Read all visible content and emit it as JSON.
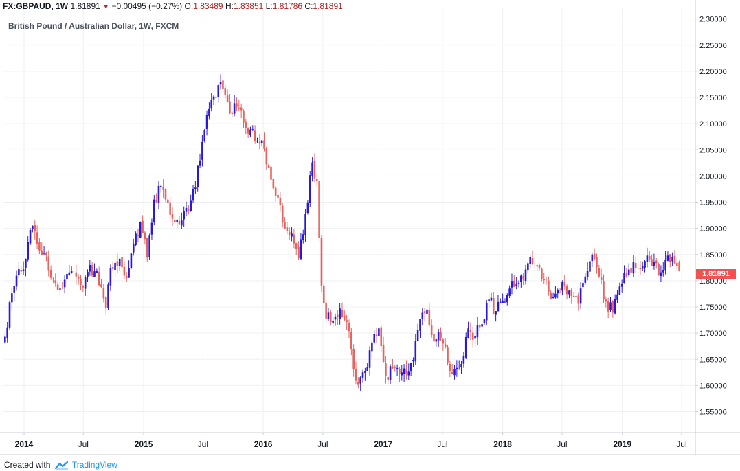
{
  "header": {
    "symbol": "FX:GBPAUD, 1W",
    "last": "1.81891",
    "arrow": "▼",
    "change": "−0.00495 (−0.27%)",
    "o_label": "O:",
    "o_value": "1.83489",
    "h_label": "H:",
    "h_value": "1.83851",
    "l_label": "L:",
    "l_value": "1.81786",
    "c_label": "C:",
    "c_value": "1.81891"
  },
  "subtitle": "British Pound / Australian Dollar, 1W, FXCM",
  "footer": {
    "created_with": "Created with",
    "brand": "TradingView"
  },
  "colors": {
    "up": "#2a18d6",
    "down": "#e8635f",
    "grid": "#eef0f3",
    "axis": "#c8ccd4",
    "price_line": "#e8635f",
    "price_tag": "#ef5350"
  },
  "chart_data": {
    "type": "candlestick",
    "title": "British Pound / Australian Dollar, 1W, FXCM",
    "interval": "1W",
    "y_axis": {
      "side": "right",
      "range": [
        1.51,
        2.31
      ],
      "ticks": [
        "2.30000",
        "2.25000",
        "2.20000",
        "2.15000",
        "2.10000",
        "2.05000",
        "2.00000",
        "1.95000",
        "1.90000",
        "1.85000",
        "1.80000",
        "1.75000",
        "1.70000",
        "1.65000",
        "1.60000",
        "1.55000"
      ]
    },
    "x_axis": {
      "range": [
        "2013-10-28",
        "2019-08-12"
      ],
      "ticks": [
        {
          "label": "2014",
          "date": "2014-01-01"
        },
        {
          "label": "Jul",
          "date": "2014-07-01"
        },
        {
          "label": "2015",
          "date": "2015-01-01"
        },
        {
          "label": "Jul",
          "date": "2015-07-01"
        },
        {
          "label": "2016",
          "date": "2016-01-01"
        },
        {
          "label": "Jul",
          "date": "2016-07-01"
        },
        {
          "label": "2017",
          "date": "2017-01-01"
        },
        {
          "label": "Jul",
          "date": "2017-07-01"
        },
        {
          "label": "2018",
          "date": "2018-01-01"
        },
        {
          "label": "Jul",
          "date": "2018-07-01"
        },
        {
          "label": "2019",
          "date": "2019-01-01"
        },
        {
          "label": "Jul",
          "date": "2019-07-01"
        }
      ]
    },
    "grid": true,
    "last_price": {
      "value": 1.81891,
      "label": "1.81891"
    },
    "series": [
      {
        "approx_weekly_closes": [
          {
            "date": "2013-11-04",
            "close": 1.693
          },
          {
            "date": "2013-11-25",
            "close": 1.776
          },
          {
            "date": "2013-12-16",
            "close": 1.822
          },
          {
            "date": "2014-01-06",
            "close": 1.842
          },
          {
            "date": "2014-01-27",
            "close": 1.905
          },
          {
            "date": "2014-02-17",
            "close": 1.858
          },
          {
            "date": "2014-03-10",
            "close": 1.849
          },
          {
            "date": "2014-03-31",
            "close": 1.803
          },
          {
            "date": "2014-04-21",
            "close": 1.785
          },
          {
            "date": "2014-05-12",
            "close": 1.813
          },
          {
            "date": "2014-06-02",
            "close": 1.818
          },
          {
            "date": "2014-06-23",
            "close": 1.792
          },
          {
            "date": "2014-07-14",
            "close": 1.817
          },
          {
            "date": "2014-08-04",
            "close": 1.818
          },
          {
            "date": "2014-08-25",
            "close": 1.788
          },
          {
            "date": "2014-09-08",
            "close": 1.748
          },
          {
            "date": "2014-09-22",
            "close": 1.824
          },
          {
            "date": "2014-10-20",
            "close": 1.842
          },
          {
            "date": "2014-11-10",
            "close": 1.805
          },
          {
            "date": "2014-12-01",
            "close": 1.871
          },
          {
            "date": "2014-12-22",
            "close": 1.912
          },
          {
            "date": "2015-01-12",
            "close": 1.844
          },
          {
            "date": "2015-02-02",
            "close": 1.955
          },
          {
            "date": "2015-02-23",
            "close": 1.981
          },
          {
            "date": "2015-03-16",
            "close": 1.949
          },
          {
            "date": "2015-04-06",
            "close": 1.912
          },
          {
            "date": "2015-04-27",
            "close": 1.915
          },
          {
            "date": "2015-05-18",
            "close": 1.934
          },
          {
            "date": "2015-06-08",
            "close": 1.978
          },
          {
            "date": "2015-06-29",
            "close": 2.065
          },
          {
            "date": "2015-07-20",
            "close": 2.128
          },
          {
            "date": "2015-08-10",
            "close": 2.149
          },
          {
            "date": "2015-08-24",
            "close": 2.18
          },
          {
            "date": "2015-09-07",
            "close": 2.155
          },
          {
            "date": "2015-09-21",
            "close": 2.121
          },
          {
            "date": "2015-10-12",
            "close": 2.132
          },
          {
            "date": "2015-11-02",
            "close": 2.102
          },
          {
            "date": "2015-11-23",
            "close": 2.089
          },
          {
            "date": "2015-12-14",
            "close": 2.067
          },
          {
            "date": "2016-01-04",
            "close": 2.052
          },
          {
            "date": "2016-01-25",
            "close": 1.993
          },
          {
            "date": "2016-02-15",
            "close": 1.958
          },
          {
            "date": "2016-03-07",
            "close": 1.9
          },
          {
            "date": "2016-03-28",
            "close": 1.89
          },
          {
            "date": "2016-04-18",
            "close": 1.843
          },
          {
            "date": "2016-05-09",
            "close": 1.928
          },
          {
            "date": "2016-05-30",
            "close": 2.026
          },
          {
            "date": "2016-06-13",
            "close": 1.991
          },
          {
            "date": "2016-06-27",
            "close": 1.791
          },
          {
            "date": "2016-07-11",
            "close": 1.728
          },
          {
            "date": "2016-08-01",
            "close": 1.724
          },
          {
            "date": "2016-08-22",
            "close": 1.747
          },
          {
            "date": "2016-09-12",
            "close": 1.721
          },
          {
            "date": "2016-10-03",
            "close": 1.632
          },
          {
            "date": "2016-10-17",
            "close": 1.601
          },
          {
            "date": "2016-11-07",
            "close": 1.628
          },
          {
            "date": "2016-11-28",
            "close": 1.682
          },
          {
            "date": "2016-12-19",
            "close": 1.709
          },
          {
            "date": "2017-01-09",
            "close": 1.618
          },
          {
            "date": "2017-01-30",
            "close": 1.633
          },
          {
            "date": "2017-02-20",
            "close": 1.622
          },
          {
            "date": "2017-03-13",
            "close": 1.622
          },
          {
            "date": "2017-04-03",
            "close": 1.649
          },
          {
            "date": "2017-04-24",
            "close": 1.727
          },
          {
            "date": "2017-05-15",
            "close": 1.745
          },
          {
            "date": "2017-06-05",
            "close": 1.684
          },
          {
            "date": "2017-06-26",
            "close": 1.691
          },
          {
            "date": "2017-07-17",
            "close": 1.644
          },
          {
            "date": "2017-08-07",
            "close": 1.631
          },
          {
            "date": "2017-08-28",
            "close": 1.641
          },
          {
            "date": "2017-09-18",
            "close": 1.709
          },
          {
            "date": "2017-10-09",
            "close": 1.695
          },
          {
            "date": "2017-10-30",
            "close": 1.717
          },
          {
            "date": "2017-11-20",
            "close": 1.764
          },
          {
            "date": "2017-12-11",
            "close": 1.742
          },
          {
            "date": "2018-01-01",
            "close": 1.762
          },
          {
            "date": "2018-01-22",
            "close": 1.785
          },
          {
            "date": "2018-02-12",
            "close": 1.794
          },
          {
            "date": "2018-03-05",
            "close": 1.802
          },
          {
            "date": "2018-03-26",
            "close": 1.845
          },
          {
            "date": "2018-04-16",
            "close": 1.827
          },
          {
            "date": "2018-05-07",
            "close": 1.801
          },
          {
            "date": "2018-05-28",
            "close": 1.765
          },
          {
            "date": "2018-06-18",
            "close": 1.782
          },
          {
            "date": "2018-07-09",
            "close": 1.79
          },
          {
            "date": "2018-07-30",
            "close": 1.771
          },
          {
            "date": "2018-08-20",
            "close": 1.756
          },
          {
            "date": "2018-09-10",
            "close": 1.808
          },
          {
            "date": "2018-10-01",
            "close": 1.85
          },
          {
            "date": "2018-10-22",
            "close": 1.808
          },
          {
            "date": "2018-11-12",
            "close": 1.76
          },
          {
            "date": "2018-12-03",
            "close": 1.739
          },
          {
            "date": "2018-12-24",
            "close": 1.789
          },
          {
            "date": "2019-01-14",
            "close": 1.808
          },
          {
            "date": "2019-02-04",
            "close": 1.836
          },
          {
            "date": "2019-02-25",
            "close": 1.822
          },
          {
            "date": "2019-03-18",
            "close": 1.848
          },
          {
            "date": "2019-04-08",
            "close": 1.836
          },
          {
            "date": "2019-04-29",
            "close": 1.816
          },
          {
            "date": "2019-05-20",
            "close": 1.848
          },
          {
            "date": "2019-06-10",
            "close": 1.833
          },
          {
            "date": "2019-06-24",
            "close": 1.819
          }
        ]
      }
    ]
  }
}
